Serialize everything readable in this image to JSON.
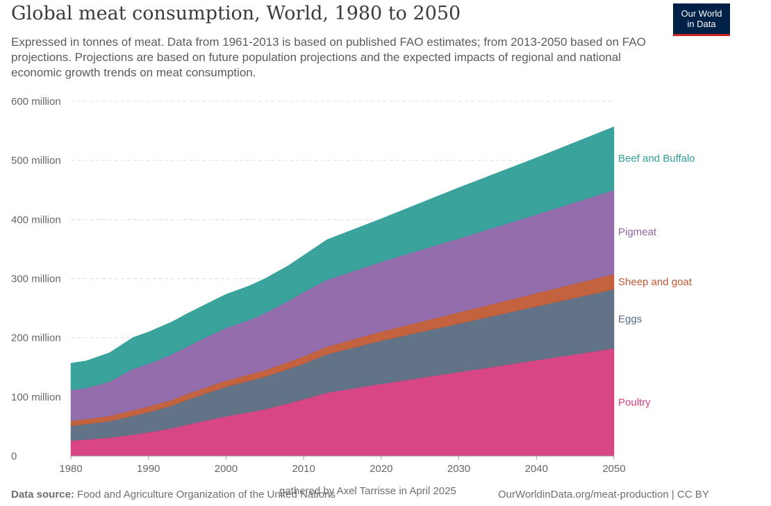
{
  "header": {
    "title": "Global meat consumption, World, 1980 to 2050",
    "subtitle": "Expressed in tonnes of meat. Data from 1961-2013 is based on published FAO estimates; from 2013-2050 based on FAO projections. Projections are based on future population projections and the expected impacts of regional and national economic growth trends on meat consumption.",
    "logo_line1": "Our World",
    "logo_line2": "in Data"
  },
  "footer": {
    "source_label": "Data source:",
    "source_text": "Food and Agriculture Organization of the United Nations",
    "gathered": "gathered by Axel Tarrisse in April 2025",
    "credit": "OurWorldinData.org/meat-production | CC BY"
  },
  "chart_data": {
    "type": "area",
    "stacked": true,
    "x_label": "",
    "y_label": "",
    "x_range": [
      1980,
      2050
    ],
    "y_range": [
      0,
      600000000
    ],
    "x_ticks": [
      1980,
      1990,
      2000,
      2010,
      2020,
      2030,
      2040,
      2050
    ],
    "y_ticks": [
      {
        "value": 0,
        "label": "0"
      },
      {
        "value": 100000000,
        "label": "100 million"
      },
      {
        "value": 200000000,
        "label": "200 million"
      },
      {
        "value": 300000000,
        "label": "300 million"
      },
      {
        "value": 400000000,
        "label": "400 million"
      },
      {
        "value": 500000000,
        "label": "500 million"
      },
      {
        "value": 600000000,
        "label": "600 million"
      }
    ],
    "grid": true,
    "legend": "right, inline labels",
    "x": [
      1980,
      1982,
      1985,
      1988,
      1990,
      1993,
      1995,
      1997,
      2000,
      2003,
      2005,
      2008,
      2010,
      2013,
      2020,
      2030,
      2040,
      2050
    ],
    "series": [
      {
        "name": "Poultry",
        "color": "#d73c80",
        "values": [
          26000000,
          28000000,
          31000000,
          36000000,
          40000000,
          47000000,
          53000000,
          59000000,
          67000000,
          74000000,
          79000000,
          89000000,
          96000000,
          107000000,
          122000000,
          142000000,
          162000000,
          182000000
        ]
      },
      {
        "name": "Eggs",
        "color": "#5b6b81",
        "values": [
          25000000,
          26000000,
          28000000,
          32000000,
          34000000,
          38000000,
          42000000,
          45000000,
          50000000,
          53000000,
          55000000,
          58000000,
          60000000,
          65000000,
          73000000,
          82000000,
          91000000,
          100000000
        ]
      },
      {
        "name": "Sheep and goat",
        "color": "#c05a34",
        "values": [
          8500000,
          8600000,
          9000000,
          9500000,
          9800000,
          9900000,
          10000000,
          10200000,
          10600000,
          11000000,
          11500000,
          12000000,
          12500000,
          13000000,
          15500000,
          19000000,
          22500000,
          26000000
        ]
      },
      {
        "name": "Pigmeat",
        "color": "#8d65a8",
        "values": [
          52000000,
          52500000,
          58000000,
          70000000,
          72000000,
          77000000,
          80000000,
          84000000,
          89000000,
          92000000,
          96000000,
          103000000,
          109000000,
          113000000,
          118000000,
          125000000,
          133000000,
          142000000
        ]
      },
      {
        "name": "Beef and Buffalo",
        "color": "#2f9e97",
        "values": [
          45500000,
          46000000,
          49000000,
          53000000,
          54000000,
          55000000,
          56000000,
          56000000,
          57000000,
          58000000,
          58500000,
          60000000,
          62000000,
          68000000,
          73000000,
          86000000,
          96000000,
          107000000
        ]
      }
    ]
  }
}
